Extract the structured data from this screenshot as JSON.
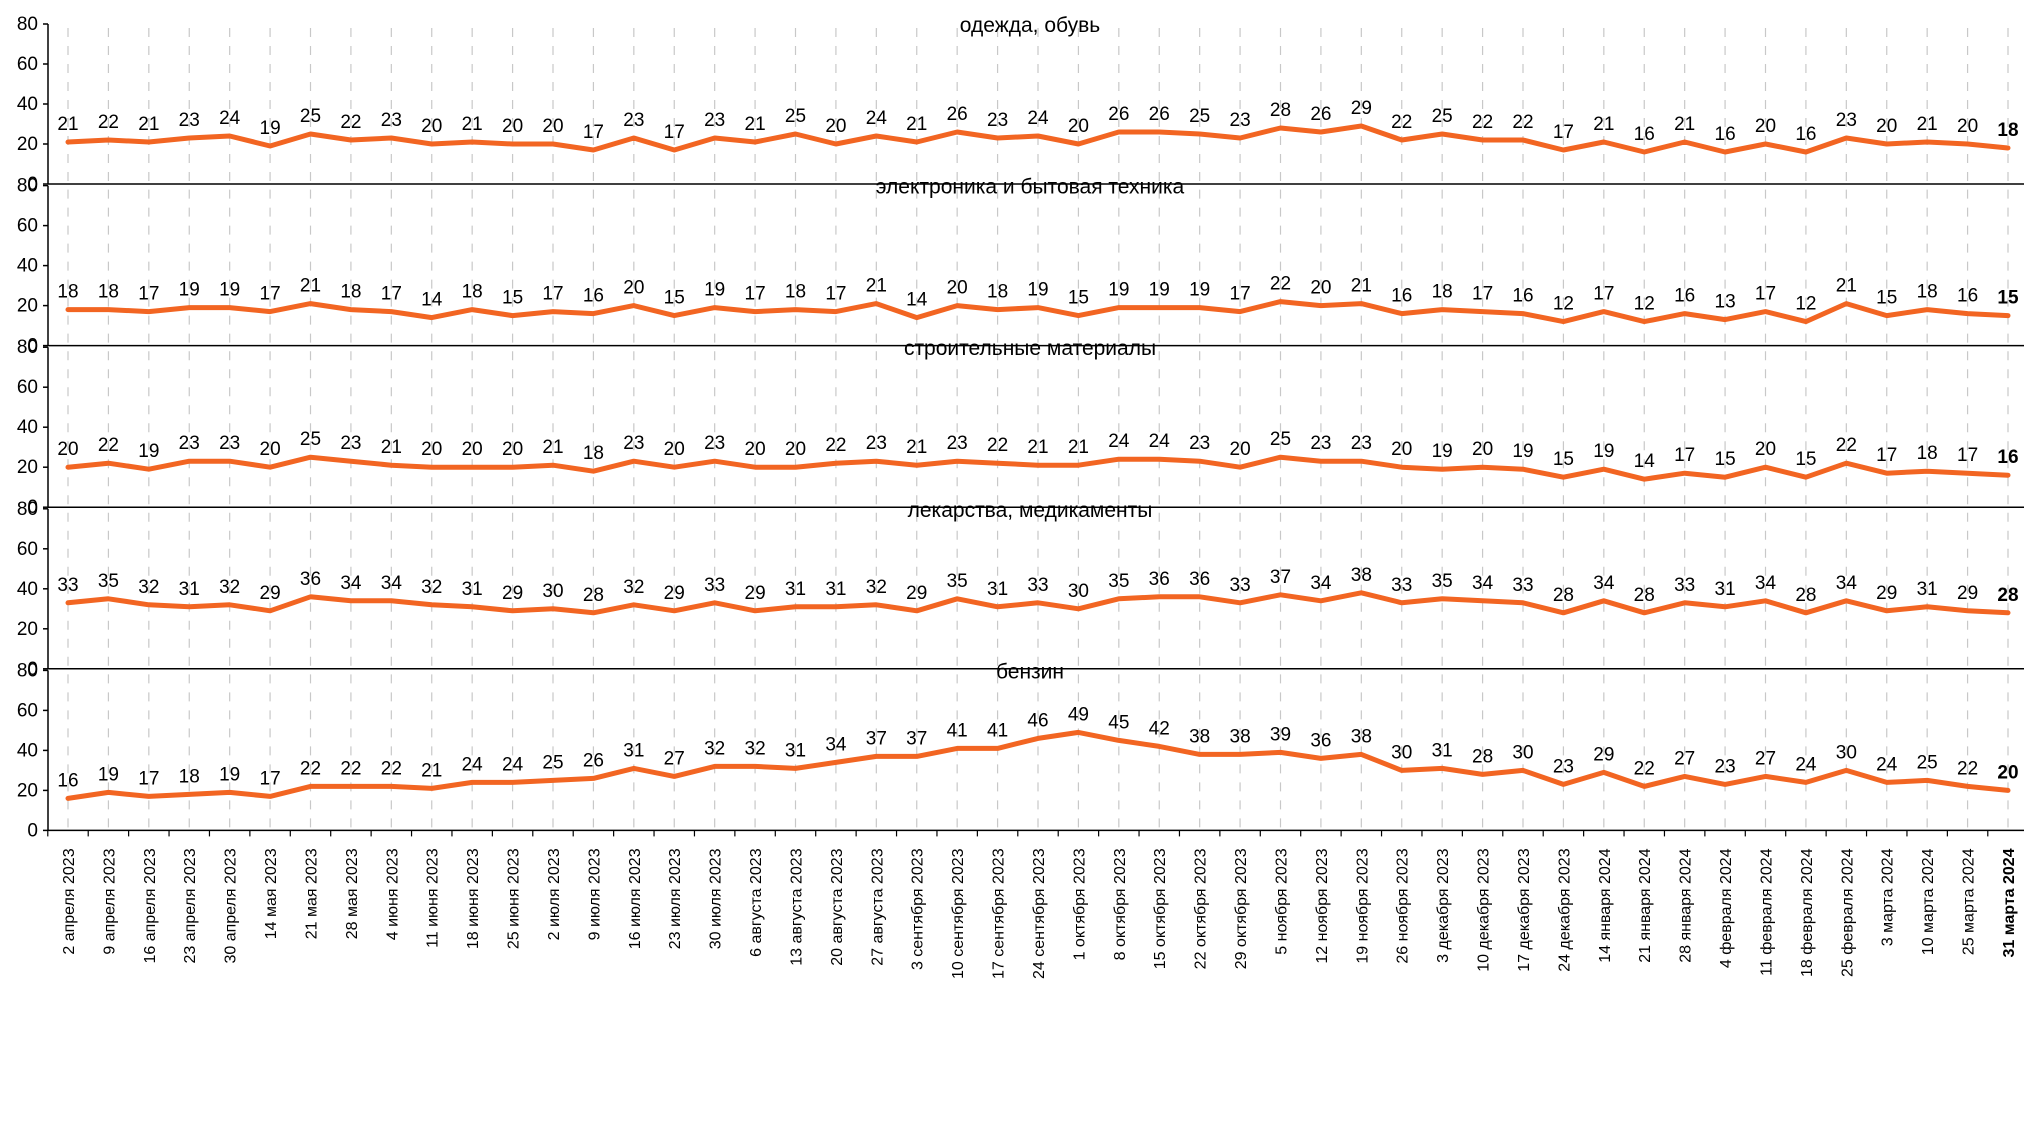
{
  "chart_data": {
    "type": "line",
    "x": [
      "2 апреля 2023",
      "9 апреля 2023",
      "16 апреля 2023",
      "23 апреля 2023",
      "30 апреля 2023",
      "14 мая 2023",
      "21 мая 2023",
      "28 мая 2023",
      "4 июня 2023",
      "11 июня 2023",
      "18 июня 2023",
      "25 июня 2023",
      "2 июля 2023",
      "9 июля 2023",
      "16 июля 2023",
      "23 июля 2023",
      "30 июля 2023",
      "6 августа 2023",
      "13 августа 2023",
      "20 августа 2023",
      "27 августа 2023",
      "3 сентября 2023",
      "10 сентября 2023",
      "17 сентября 2023",
      "24 сентября 2023",
      "1 октября 2023",
      "8 октября 2023",
      "15 октября 2023",
      "22 октября 2023",
      "29 октября 2023",
      "5 ноября 2023",
      "12 ноября 2023",
      "19 ноября 2023",
      "26 ноября 2023",
      "3 декабря 2023",
      "10 декабря 2023",
      "17 декабря 2023",
      "24 декабря 2023",
      "14 января 2024",
      "21 января 2024",
      "28 января 2024",
      "4 февраля 2024",
      "11 февраля 2024",
      "18 февраля 2024",
      "25 февраля 2024",
      "3 марта 2024",
      "10 марта 2024",
      "25 марта 2024",
      "31 марта 2024"
    ],
    "ylim": [
      0,
      80
    ],
    "yticks": [
      0,
      20,
      40,
      60,
      80
    ],
    "color": "#f26522",
    "panels": [
      {
        "title": "одежда, обувь",
        "values": [
          21,
          22,
          21,
          23,
          24,
          19,
          25,
          22,
          23,
          20,
          21,
          20,
          20,
          17,
          23,
          17,
          23,
          21,
          25,
          20,
          24,
          21,
          26,
          23,
          24,
          20,
          26,
          26,
          25,
          23,
          28,
          26,
          29,
          22,
          25,
          22,
          22,
          17,
          21,
          16,
          21,
          16,
          20,
          16,
          23,
          20,
          21,
          20,
          18
        ]
      },
      {
        "title": "электроника и бытовая техника",
        "values": [
          18,
          18,
          17,
          19,
          19,
          17,
          21,
          18,
          17,
          14,
          18,
          15,
          17,
          16,
          20,
          15,
          19,
          17,
          18,
          17,
          21,
          14,
          20,
          18,
          19,
          15,
          19,
          19,
          19,
          17,
          22,
          20,
          21,
          16,
          18,
          17,
          16,
          12,
          17,
          12,
          16,
          13,
          17,
          12,
          21,
          15,
          18,
          16,
          15
        ]
      },
      {
        "title": "строительные материалы",
        "values": [
          20,
          22,
          19,
          23,
          23,
          20,
          25,
          23,
          21,
          20,
          20,
          20,
          21,
          18,
          23,
          20,
          23,
          20,
          20,
          22,
          23,
          21,
          23,
          22,
          21,
          21,
          24,
          24,
          23,
          20,
          25,
          23,
          23,
          20,
          19,
          20,
          19,
          15,
          19,
          14,
          17,
          15,
          20,
          15,
          22,
          17,
          18,
          17,
          16
        ]
      },
      {
        "title": "лекарства, медикаменты",
        "values": [
          33,
          35,
          32,
          31,
          32,
          29,
          36,
          34,
          34,
          32,
          31,
          29,
          30,
          28,
          32,
          29,
          33,
          29,
          31,
          31,
          32,
          29,
          35,
          31,
          33,
          30,
          35,
          36,
          36,
          33,
          37,
          34,
          38,
          33,
          35,
          34,
          33,
          28,
          34,
          28,
          33,
          31,
          34,
          28,
          34,
          29,
          31,
          29,
          28
        ]
      },
      {
        "title": "бензин",
        "values": [
          16,
          19,
          17,
          18,
          19,
          17,
          22,
          22,
          22,
          21,
          24,
          24,
          25,
          26,
          31,
          27,
          32,
          32,
          31,
          34,
          37,
          37,
          41,
          41,
          46,
          49,
          45,
          42,
          38,
          38,
          39,
          36,
          38,
          30,
          31,
          28,
          30,
          23,
          29,
          22,
          27,
          23,
          27,
          24,
          30,
          24,
          25,
          22,
          20
        ]
      }
    ]
  }
}
